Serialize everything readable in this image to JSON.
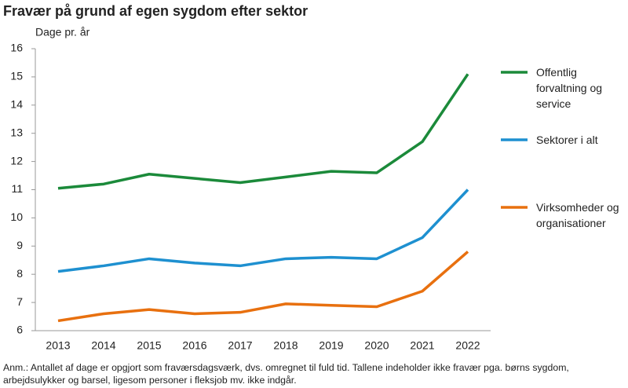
{
  "chart_data": {
    "type": "line",
    "title": "Fravær på grund af egen sygdom efter sektor",
    "y_label": "Dage pr. år",
    "note": "Anm.: Antallet af dage er opgjort som fraværsdagsværk, dvs. omregnet til fuld tid. Tallene indeholder ikke fravær pga. børns sygdom, arbejdsulykker og barsel, ligesom personer i fleksjob mv. ikke indgår.",
    "categories": [
      "2013",
      "2014",
      "2015",
      "2016",
      "2017",
      "2018",
      "2019",
      "2020",
      "2021",
      "2022"
    ],
    "series": [
      {
        "name": "Offentlig forvaltning og service",
        "color": "#1b8a3a",
        "values": [
          11.05,
          11.2,
          11.55,
          11.4,
          11.25,
          11.45,
          11.65,
          11.6,
          12.7,
          15.1
        ]
      },
      {
        "name": "Sektorer i alt",
        "color": "#1e90d0",
        "values": [
          8.1,
          8.3,
          8.55,
          8.4,
          8.3,
          8.55,
          8.6,
          8.55,
          9.3,
          11.0
        ]
      },
      {
        "name": "Virksomheder og organisationer",
        "color": "#e8700f",
        "values": [
          6.35,
          6.6,
          6.75,
          6.6,
          6.65,
          6.95,
          6.9,
          6.85,
          7.4,
          8.8
        ]
      }
    ],
    "ylim": [
      6,
      16
    ],
    "yticks": [
      6,
      7,
      8,
      9,
      10,
      11,
      12,
      13,
      14,
      15,
      16
    ],
    "grid": false
  }
}
